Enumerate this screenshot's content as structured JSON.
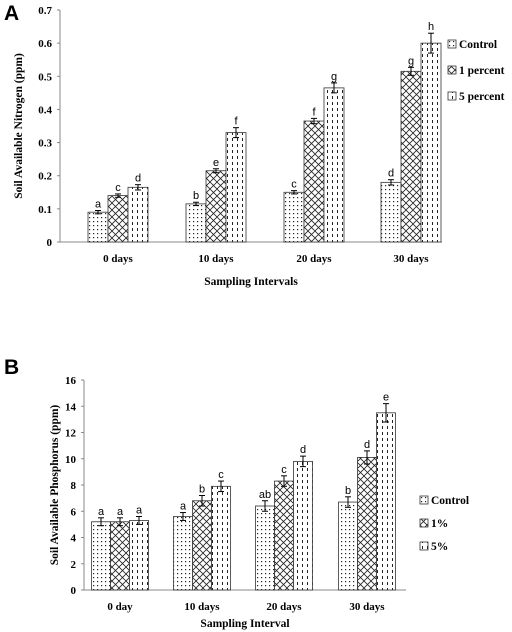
{
  "chart_data": [
    {
      "panel": "A",
      "type": "bar",
      "title": "",
      "xlabel": "Sampling Intervals",
      "ylabel": "Soil Available Nitrogen (ppm)",
      "ylim": [
        0,
        0.7
      ],
      "yticks": [
        "0",
        "0.1",
        "0.2",
        "0.3",
        "0.4",
        "0.5",
        "0.6",
        "0.7"
      ],
      "grid": false,
      "legend_position": "right",
      "categories": [
        "0 days",
        "10 days",
        "20 days",
        "30 days"
      ],
      "series": [
        {
          "name": "Control",
          "pattern": "dots",
          "values": [
            0.09,
            0.115,
            0.15,
            0.18
          ],
          "errors": [
            0.005,
            0.005,
            0.005,
            0.008
          ],
          "letters": [
            "a",
            "b",
            "c",
            "d"
          ]
        },
        {
          "name": "1 percent",
          "pattern": "cross",
          "values": [
            0.14,
            0.215,
            0.365,
            0.515
          ],
          "errors": [
            0.005,
            0.006,
            0.008,
            0.012
          ],
          "letters": [
            "c",
            "e",
            "f",
            "g"
          ]
        },
        {
          "name": "5 percent",
          "pattern": "dash",
          "values": [
            0.165,
            0.33,
            0.465,
            0.6
          ],
          "errors": [
            0.008,
            0.015,
            0.015,
            0.03
          ],
          "letters": [
            "d",
            "f",
            "g",
            "h"
          ]
        }
      ]
    },
    {
      "panel": "B",
      "type": "bar",
      "title": "",
      "xlabel": "Sampling Interval",
      "ylabel": "Soil Available Phosphorus (ppm)",
      "ylim": [
        0,
        16
      ],
      "yticks": [
        "0",
        "2",
        "4",
        "6",
        "8",
        "10",
        "12",
        "14",
        "16"
      ],
      "grid": false,
      "legend_position": "right",
      "categories": [
        "0 day",
        "10 days",
        "20 days",
        "30 days"
      ],
      "series": [
        {
          "name": "Control",
          "pattern": "dots",
          "values": [
            5.2,
            5.6,
            6.4,
            6.7
          ],
          "errors": [
            0.3,
            0.3,
            0.4,
            0.4
          ],
          "letters": [
            "a",
            "a",
            "ab",
            "b"
          ]
        },
        {
          "name": "1%",
          "pattern": "cross",
          "values": [
            5.2,
            6.8,
            8.3,
            10.1
          ],
          "errors": [
            0.3,
            0.4,
            0.4,
            0.5
          ],
          "letters": [
            "a",
            "b",
            "c",
            "d"
          ]
        },
        {
          "name": "5%",
          "pattern": "dash",
          "values": [
            5.3,
            7.9,
            9.8,
            13.5
          ],
          "errors": [
            0.3,
            0.4,
            0.4,
            0.7
          ],
          "letters": [
            "a",
            "c",
            "d",
            "e"
          ]
        }
      ]
    }
  ]
}
